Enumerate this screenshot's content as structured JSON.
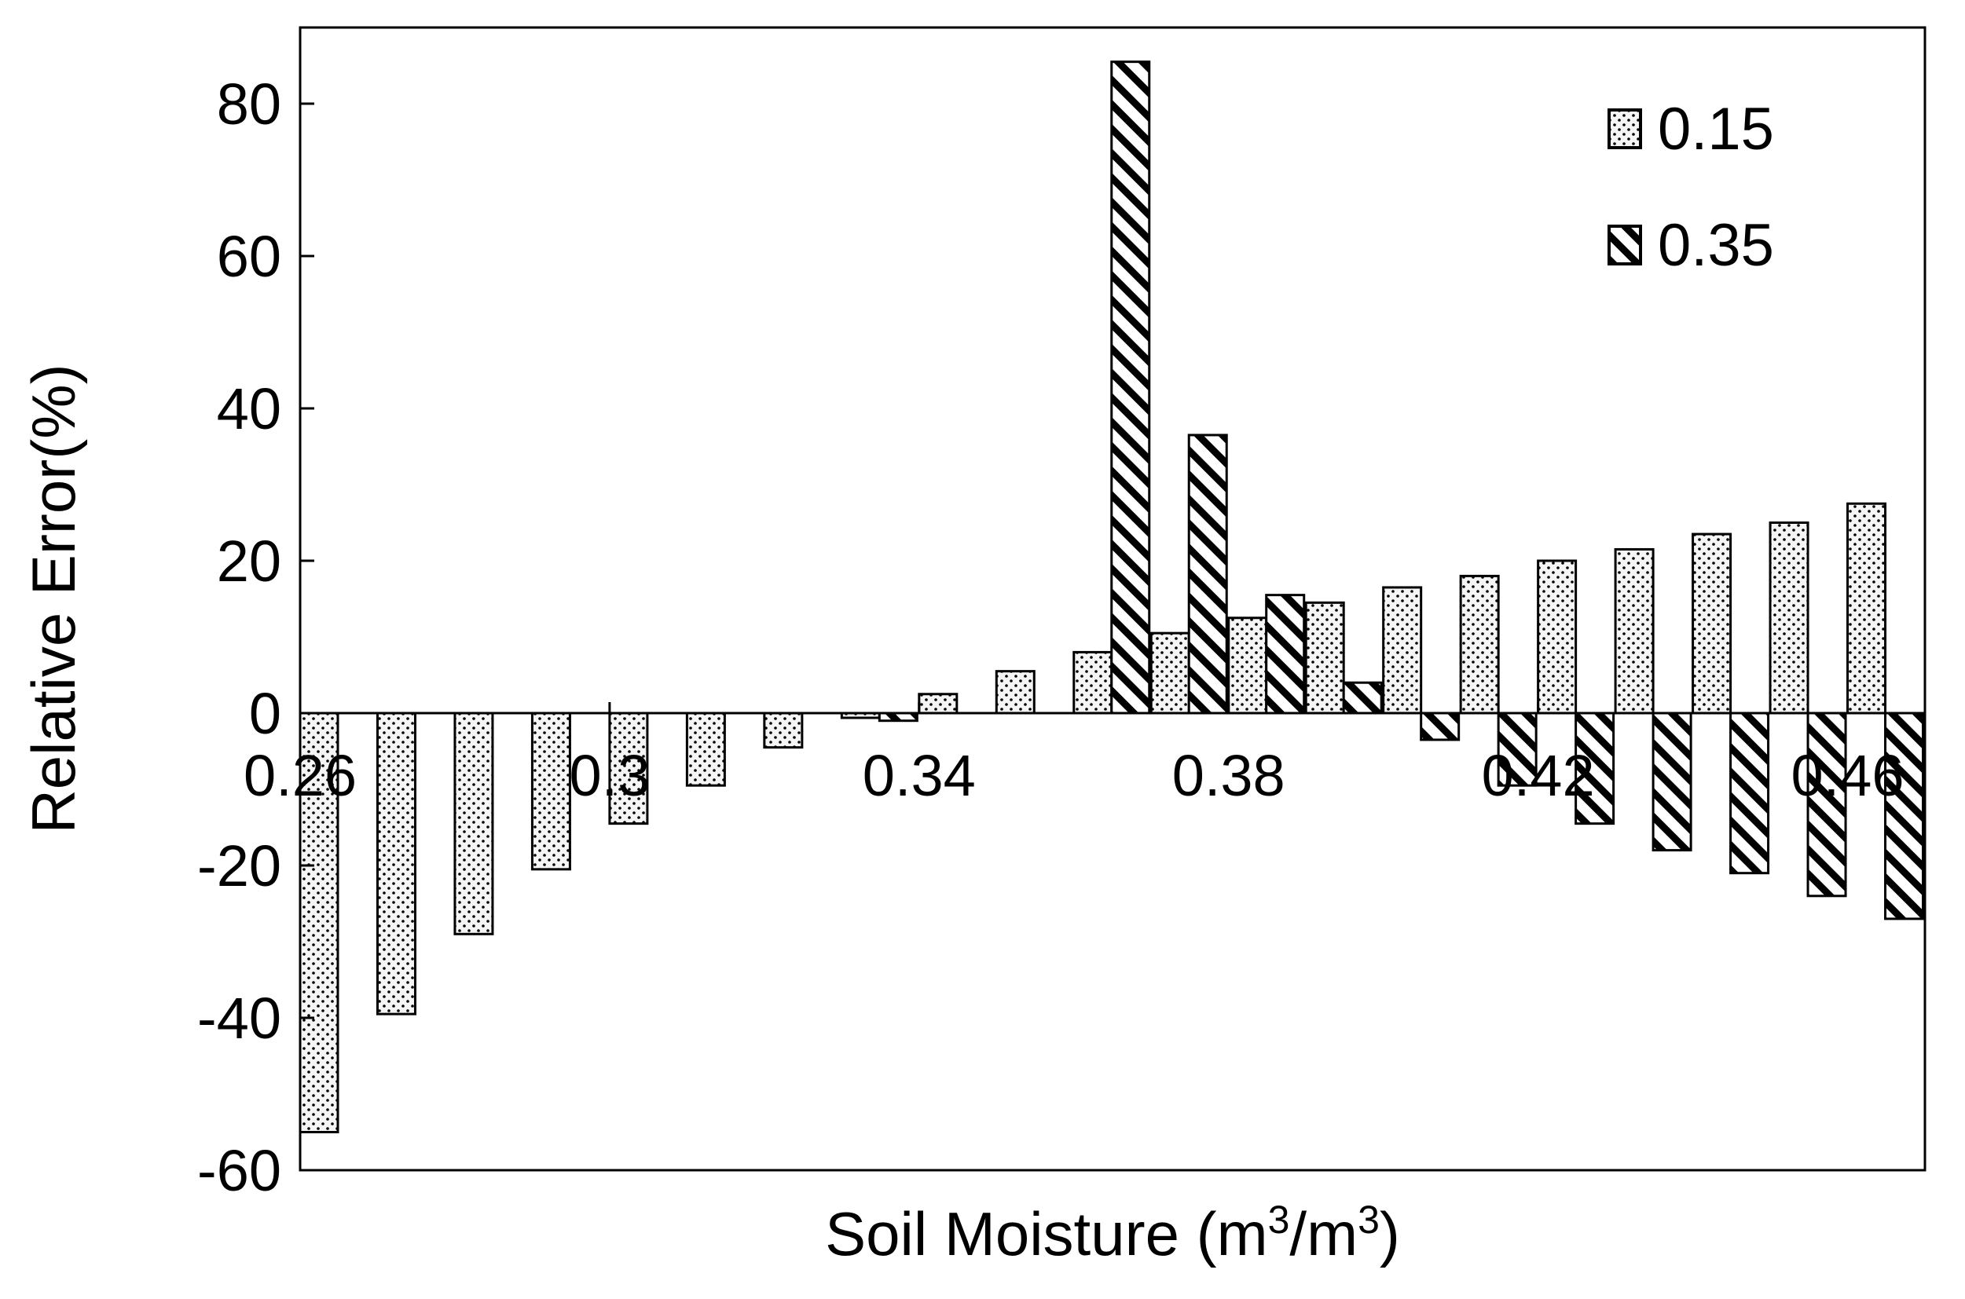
{
  "chart_data": {
    "type": "bar",
    "title": "",
    "xlabel": "Soil Moisture (m",
    "xlabel_sup1": "3",
    "xlabel_mid": "/m",
    "xlabel_sup2": "3",
    "xlabel_end": ")",
    "ylabel": "Relative Error(%)",
    "ylim": [
      -60,
      90
    ],
    "xlim": [
      0.26,
      0.47
    ],
    "yticks": [
      80,
      60,
      40,
      20,
      0,
      -20,
      -40,
      -60
    ],
    "xticks": [
      0.26,
      0.3,
      0.34,
      0.38,
      0.42,
      0.46
    ],
    "xtick_labels": [
      "0.26",
      "0.3",
      "0.34",
      "0.38",
      "0.42",
      "0.46"
    ],
    "ytick_labels": [
      "80",
      "60",
      "40",
      "20",
      "0",
      "-20",
      "-40",
      "-60"
    ],
    "grid": false,
    "legend_position": "top-right",
    "categories": [
      0.26,
      0.27,
      0.28,
      0.29,
      0.3,
      0.31,
      0.32,
      0.33,
      0.34,
      0.35,
      0.36,
      0.37,
      0.38,
      0.39,
      0.4,
      0.41,
      0.42,
      0.43,
      0.44,
      0.45,
      0.46
    ],
    "series": [
      {
        "name": "0.15",
        "pattern": "dots",
        "values": [
          -55,
          -39.5,
          -29,
          -20.5,
          -14.5,
          -9.5,
          -4.5,
          -0.5,
          2.5,
          5.5,
          8,
          10.5,
          12.5,
          14.5,
          16.5,
          18,
          20,
          21.5,
          23.5,
          25,
          27.5
        ]
      },
      {
        "name": "0.35",
        "pattern": "diagonal-hatch",
        "values": [
          null,
          null,
          null,
          null,
          null,
          null,
          null,
          -1,
          null,
          null,
          85.5,
          36.5,
          15.5,
          4,
          -3.5,
          -9.5,
          -14.5,
          -18,
          -21,
          -24,
          -27
        ]
      }
    ]
  }
}
